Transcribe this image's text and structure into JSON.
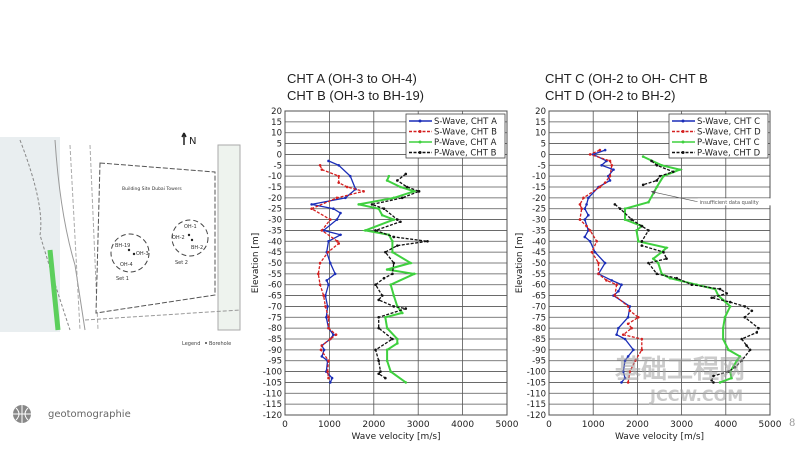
{
  "map": {
    "north": "N",
    "site_label": "Building Site Dubai Towers",
    "set1": {
      "label": "Set 1",
      "boreholes": [
        "BH-19",
        "OH-3",
        "OH-4"
      ]
    },
    "set2": {
      "label": "Set 2",
      "boreholes": [
        "OH-1",
        "OH-2",
        "BH-2"
      ]
    },
    "legend_label": "Legend",
    "legend_item": "Borehole"
  },
  "logo": {
    "text": "geotomographie"
  },
  "watermark": {
    "cn": "基础工程网",
    "en": "JCCW.COM"
  },
  "page_number": "8",
  "colors": {
    "s_a": "#1a2db8",
    "s_b": "#d42020",
    "p_a": "#3fd03f",
    "p_b": "#111111"
  },
  "chart_data": [
    {
      "type": "line",
      "title_lines": [
        "CHT A (OH-3 to OH-4)",
        "CHT B (OH-3 to BH-19)"
      ],
      "xlabel": "Wave velocity [m/s]",
      "ylabel": "Elevation [m]",
      "xlim": [
        0,
        5000
      ],
      "ylim": [
        -120,
        20
      ],
      "xticks": [
        0,
        1000,
        2000,
        3000,
        4000,
        5000
      ],
      "yticks": [
        20,
        15,
        10,
        5,
        0,
        -5,
        -10,
        -15,
        -20,
        -25,
        -30,
        -35,
        -40,
        -45,
        -50,
        -55,
        -60,
        -65,
        -70,
        -75,
        -80,
        -85,
        -90,
        -95,
        -100,
        -105,
        -110,
        -115,
        -120
      ],
      "grid": true,
      "legend_position": "top-right",
      "series": [
        {
          "name": "S-Wave, CHT A",
          "color": "#1a2db8",
          "dash": false,
          "elevation": [
            -3,
            -5,
            -10,
            -16,
            -20,
            -23,
            -25,
            -27,
            -30,
            -35,
            -37,
            -40,
            -45,
            -50,
            -55,
            -58,
            -60,
            -65,
            -70,
            -75,
            -80,
            -83,
            -85,
            -88,
            -90,
            -93,
            -95,
            -100,
            -103,
            -105
          ],
          "velocity": [
            980,
            1210,
            1470,
            1590,
            1360,
            600,
            1090,
            1250,
            1170,
            870,
            1250,
            980,
            940,
            1020,
            1130,
            940,
            980,
            910,
            960,
            930,
            980,
            1090,
            1020,
            830,
            880,
            830,
            960,
            930,
            1060,
            1020
          ]
        },
        {
          "name": "S-Wave, CHT B",
          "color": "#d42020",
          "dash": true,
          "elevation": [
            -5,
            -7,
            -10,
            -13,
            -15,
            -17,
            -20,
            -25,
            -30,
            -35,
            -40,
            -41,
            -45,
            -50,
            -55,
            -60,
            -65,
            -70,
            -75,
            -80,
            -83,
            -85,
            -88,
            -90,
            -95,
            -100,
            -103
          ],
          "velocity": [
            790,
            830,
            1210,
            1210,
            1400,
            1770,
            1170,
            600,
            1020,
            830,
            1180,
            1210,
            970,
            790,
            750,
            790,
            870,
            910,
            980,
            980,
            1150,
            1020,
            830,
            810,
            980,
            960,
            980
          ]
        },
        {
          "name": "P-Wave, CHT A",
          "color": "#3fd03f",
          "dash": false,
          "elevation": [
            -10,
            -12,
            -15,
            -17,
            -20,
            -23,
            -25,
            -28,
            -30,
            -35,
            -37,
            -40,
            -45,
            -50,
            -53,
            -55,
            -60,
            -65,
            -70,
            -73,
            -75,
            -80,
            -85,
            -87,
            -90,
            -95,
            -100,
            -105
          ],
          "velocity": [
            2340,
            2300,
            2600,
            2910,
            2450,
            1660,
            2110,
            2190,
            2450,
            1810,
            2340,
            2420,
            2420,
            2830,
            2300,
            2910,
            2380,
            2450,
            2530,
            2640,
            2260,
            2300,
            2530,
            2530,
            2300,
            2300,
            2380,
            2720
          ]
        },
        {
          "name": "P-Wave, CHT B",
          "color": "#111111",
          "dash": true,
          "elevation": [
            -9,
            -12,
            -15,
            -17,
            -20,
            -23,
            -25,
            -30,
            -31,
            -35,
            -38,
            -40,
            -42,
            -45,
            -50,
            -55,
            -57,
            -60,
            -65,
            -67,
            -70,
            -71,
            -75,
            -80,
            -85,
            -90,
            -95,
            -100,
            -101,
            -103
          ],
          "velocity": [
            2720,
            2530,
            2750,
            3020,
            2640,
            1960,
            2230,
            2530,
            2600,
            2040,
            2450,
            3210,
            2530,
            2260,
            2450,
            2420,
            2230,
            2040,
            2190,
            2110,
            2450,
            2720,
            2110,
            2110,
            2420,
            2040,
            2110,
            2150,
            2110,
            2260
          ]
        }
      ]
    },
    {
      "type": "line",
      "title_lines": [
        "CHT C (OH-2 to OH- CHT B",
        "CHT D (OH-2 to BH-2)"
      ],
      "xlabel": "Wave velocity [m/s]",
      "ylabel": "Elevation [m]",
      "xlim": [
        0,
        5000
      ],
      "ylim": [
        -120,
        20
      ],
      "xticks": [
        0,
        1000,
        2000,
        3000,
        4000,
        5000
      ],
      "yticks": [
        20,
        15,
        10,
        5,
        0,
        -5,
        -10,
        -15,
        -20,
        -25,
        -30,
        -35,
        -40,
        -45,
        -50,
        -55,
        -60,
        -65,
        -70,
        -75,
        -80,
        -85,
        -90,
        -95,
        -100,
        -105,
        -110,
        -115,
        -120
      ],
      "grid": true,
      "legend_position": "top-right",
      "annotation": {
        "text": "insufficient data quality",
        "elevation": -17,
        "velocity": 2300
      },
      "series": [
        {
          "name": "S-Wave, CHT C",
          "color": "#1a2db8",
          "dash": false,
          "elevation": [
            2,
            0,
            -3,
            -5,
            -7,
            -10,
            -12,
            -15,
            -20,
            -23,
            -25,
            -28,
            -30,
            -35,
            -38,
            -40,
            -45,
            -50,
            -55,
            -58,
            -60,
            -63,
            -65,
            -70,
            -75,
            -80,
            -83,
            -85,
            -90,
            -93,
            -95,
            -100,
            -103,
            -105
          ],
          "velocity": [
            1270,
            1000,
            1300,
            1190,
            1460,
            1340,
            1380,
            1120,
            890,
            850,
            810,
            890,
            810,
            890,
            810,
            930,
            1040,
            1270,
            1120,
            1420,
            1640,
            1570,
            1460,
            1830,
            1790,
            1570,
            1530,
            1720,
            1910,
            1790,
            1720,
            1680,
            1720,
            1640
          ]
        },
        {
          "name": "S-Wave, CHT D",
          "color": "#d42020",
          "dash": true,
          "elevation": [
            2,
            0,
            -3,
            -5,
            -10,
            -13,
            -15,
            -20,
            -23,
            -25,
            -30,
            -33,
            -35,
            -40,
            -45,
            -50,
            -55,
            -58,
            -60,
            -65,
            -70,
            -72,
            -75,
            -78,
            -80,
            -83,
            -85,
            -90,
            -95,
            -100,
            -105
          ],
          "velocity": [
            1150,
            930,
            1380,
            1420,
            1380,
            1270,
            1150,
            780,
            700,
            740,
            700,
            850,
            930,
            1080,
            970,
            1120,
            1120,
            1300,
            1530,
            1490,
            1790,
            1830,
            2020,
            1790,
            1870,
            1680,
            2100,
            2100,
            1950,
            1830,
            1790
          ]
        },
        {
          "name": "P-Wave, CHT C",
          "color": "#3fd03f",
          "dash": false,
          "elevation": [
            -1,
            -5,
            -7,
            -10,
            -15,
            -22,
            -25,
            -30,
            -33,
            -35,
            -40,
            -43,
            -45,
            -48,
            -50,
            -55,
            -57,
            -60,
            -62,
            -65,
            -67,
            -70,
            -75,
            -80,
            -85,
            -90,
            -93,
            -95,
            -100,
            -103,
            -105
          ],
          "velocity": [
            2130,
            2550,
            2960,
            2590,
            2440,
            2250,
            1720,
            1720,
            2100,
            1980,
            2020,
            2660,
            2550,
            2360,
            2470,
            2550,
            2740,
            3340,
            3760,
            3830,
            3940,
            4100,
            3980,
            3940,
            3940,
            4060,
            4320,
            4250,
            4100,
            4130,
            3870
          ]
        },
        {
          "name": "P-Wave, CHT D",
          "color": "#111111",
          "dash": true,
          "elevation": [
            -3,
            -5,
            -8,
            -10,
            -12,
            -14,
            -18,
            -23,
            -25,
            -30,
            -33,
            -35,
            -40,
            -42,
            -45,
            -48,
            -50,
            -55,
            -57,
            -60,
            -62,
            -64,
            -66,
            -68,
            -70,
            -72,
            -75,
            -80,
            -82,
            -85,
            -88,
            -90,
            -95,
            -98,
            -100,
            -102,
            -104,
            -105
          ],
          "velocity": [
            2320,
            2440,
            2810,
            2510,
            2440,
            2130,
            null,
            1490,
            1610,
            1870,
            2100,
            2250,
            2100,
            2100,
            2590,
            2660,
            2250,
            2440,
            2890,
            3230,
            3870,
            4020,
            3680,
            4100,
            4430,
            4590,
            4430,
            4740,
            4700,
            4360,
            4470,
            4550,
            4360,
            4210,
            4060,
            3720,
            3680,
            3720
          ]
        }
      ]
    }
  ]
}
